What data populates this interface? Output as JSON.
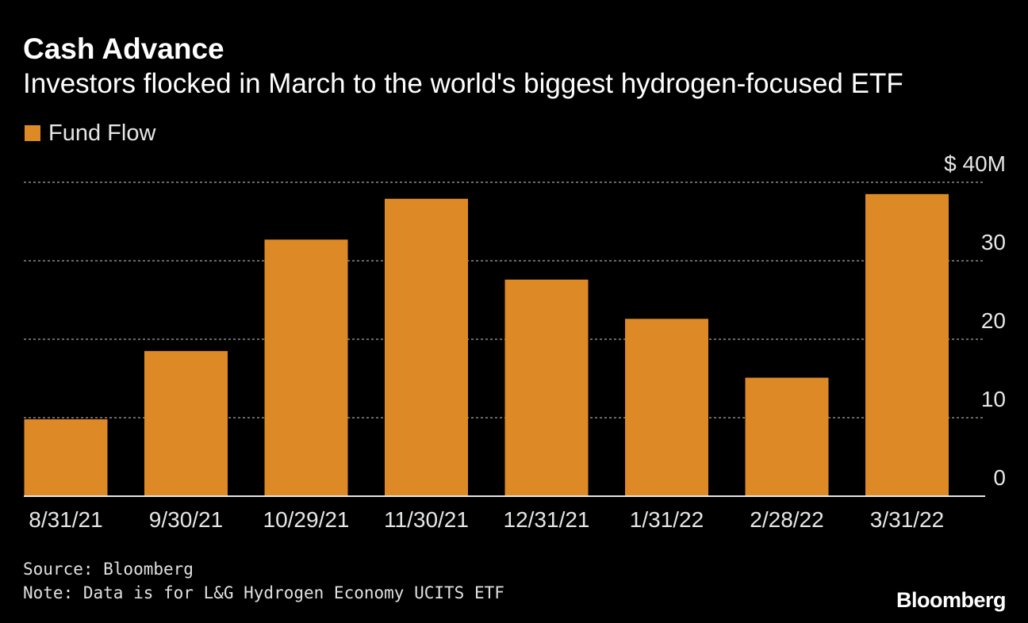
{
  "colors": {
    "background": "#000000",
    "bar": "#dd8a26",
    "gridline": "#8a8a8a",
    "baseline": "#e6e6e6",
    "text": "#ffffff"
  },
  "legend": {
    "label": "Fund Flow"
  },
  "footer": {
    "source": "Source: Bloomberg",
    "note": "Note: Data is for L&G Hydrogen Economy UCITS ETF",
    "logo": "Bloomberg"
  },
  "chart_data": {
    "type": "bar",
    "title": "Cash Advance",
    "subtitle": "Investors flocked in March to the world's biggest hydrogen-focused ETF",
    "categories": [
      "8/31/21",
      "9/30/21",
      "10/29/21",
      "11/30/21",
      "12/31/21",
      "1/31/22",
      "2/28/22",
      "3/31/22"
    ],
    "series": [
      {
        "name": "Fund Flow",
        "values": [
          9.8,
          18.5,
          32.7,
          37.9,
          27.6,
          22.6,
          15.1,
          38.5
        ]
      }
    ],
    "xlabel": "",
    "ylabel": "",
    "ylim": [
      0,
      40
    ],
    "yticks": [
      0,
      10,
      20,
      30,
      40
    ],
    "ytick_labels": [
      "0",
      "10",
      "20",
      "30",
      "$ 40M"
    ],
    "y_axis_side": "right",
    "grid": true,
    "legend_position": "top-left"
  }
}
